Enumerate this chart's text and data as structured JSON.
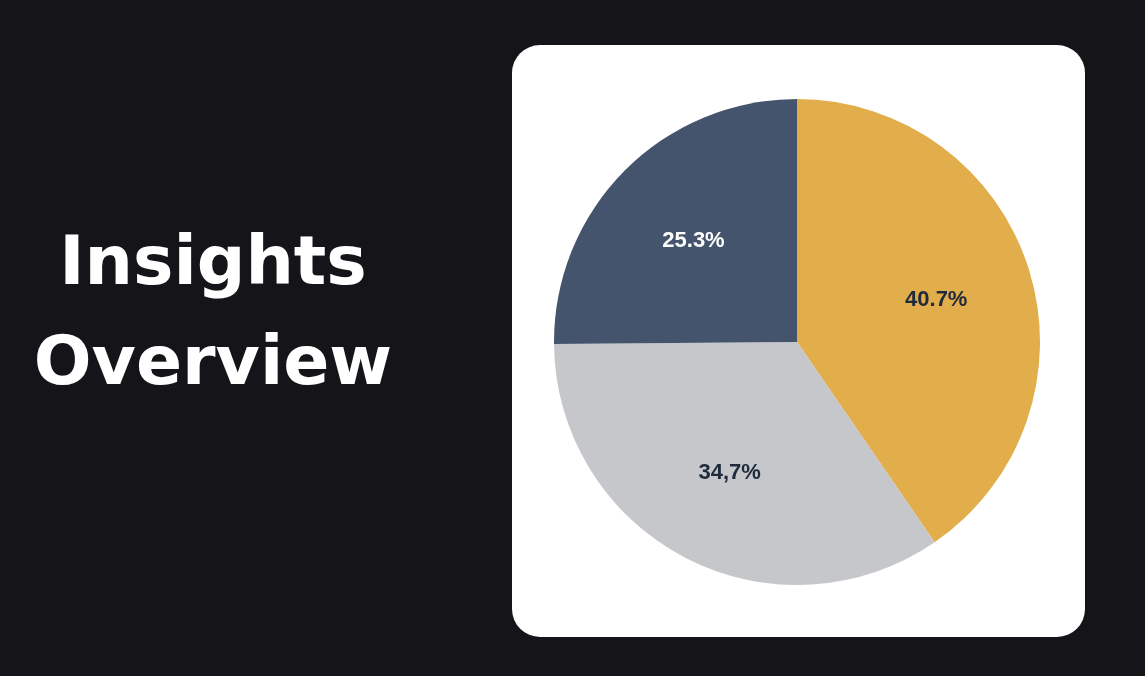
{
  "chart_data": {
    "type": "pie",
    "title": "Insights Overview",
    "categories": [
      null,
      null,
      null
    ],
    "values": [
      40.7,
      34.7,
      25.3
    ],
    "colors": [
      "#e2ae4c",
      "#c5c7cb",
      "#44546c"
    ],
    "value_labels": [
      "40.7%",
      "34,7%",
      "25.3%"
    ]
  }
}
